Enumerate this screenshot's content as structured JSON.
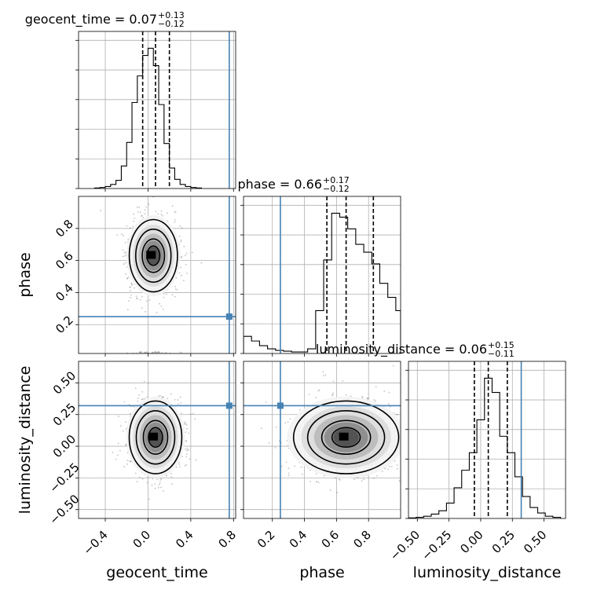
{
  "chart_data": {
    "type": "corner",
    "truth_color": "#4682b4",
    "params": [
      {
        "name": "geocent_time",
        "axis_label": "geocent_time",
        "title_value": "0.07",
        "title_plus": "+0.13",
        "title_minus": "−0.12",
        "range": [
          -0.65,
          0.82
        ],
        "ticks": [
          -0.4,
          0.0,
          0.4,
          0.8
        ],
        "tick_labels": [
          "−0.4",
          "0.0",
          "0.4",
          "0.8"
        ],
        "truth": 0.76,
        "quantiles": [
          -0.05,
          0.07,
          0.2
        ],
        "hist_edges": [
          -0.5,
          -0.45,
          -0.4,
          -0.35,
          -0.3,
          -0.25,
          -0.2,
          -0.15,
          -0.1,
          -0.05,
          0.0,
          0.05,
          0.1,
          0.15,
          0.2,
          0.25,
          0.3,
          0.35,
          0.4,
          0.45,
          0.5
        ],
        "hist_values": [
          0.5,
          1,
          2,
          4,
          8,
          22,
          45,
          84,
          110,
          130,
          137,
          120,
          82,
          44,
          20,
          9,
          4,
          2,
          1,
          0.5
        ]
      },
      {
        "name": "phase",
        "axis_label": "phase",
        "title_value": "0.66",
        "title_plus": "+0.17",
        "title_minus": "−0.12",
        "range": [
          0.02,
          1.0
        ],
        "ticks": [
          0.2,
          0.4,
          0.6,
          0.8
        ],
        "tick_labels": [
          "0.2",
          "0.4",
          "0.6",
          "0.8"
        ],
        "truth": 0.25,
        "quantiles": [
          0.54,
          0.66,
          0.83
        ],
        "hist_edges": [
          0.02,
          0.07,
          0.12,
          0.17,
          0.22,
          0.27,
          0.32,
          0.37,
          0.42,
          0.47,
          0.52,
          0.57,
          0.62,
          0.67,
          0.72,
          0.77,
          0.82,
          0.87,
          0.92,
          0.97,
          1.0
        ],
        "hist_values": [
          22,
          16,
          10,
          6,
          4,
          3,
          2,
          2,
          6,
          55,
          120,
          180,
          175,
          160,
          140,
          130,
          115,
          90,
          72,
          55
        ]
      },
      {
        "name": "luminosity_distance",
        "axis_label": "luminosity_distance",
        "title_value": "0.06",
        "title_plus": "+0.15",
        "title_minus": "−0.11",
        "range": [
          -0.57,
          0.67
        ],
        "ticks": [
          -0.5,
          -0.25,
          0.0,
          0.25,
          0.5
        ],
        "tick_labels": [
          "−0.50",
          "−0.25",
          "0.00",
          "0.25",
          "0.50"
        ],
        "truth": 0.32,
        "quantiles": [
          -0.05,
          0.06,
          0.21
        ],
        "hist_edges": [
          -0.57,
          -0.51,
          -0.45,
          -0.39,
          -0.33,
          -0.27,
          -0.21,
          -0.15,
          -0.09,
          -0.03,
          0.03,
          0.09,
          0.15,
          0.21,
          0.27,
          0.33,
          0.39,
          0.45,
          0.51,
          0.57,
          0.63
        ],
        "hist_values": [
          0.5,
          1,
          2,
          4,
          7,
          14,
          28,
          44,
          60,
          90,
          128,
          115,
          75,
          60,
          38,
          20,
          10,
          5,
          2,
          1
        ]
      }
    ],
    "pairs": [
      {
        "x_param": 0,
        "y_param": 1,
        "center": [
          0.05,
          0.63
        ],
        "spread": [
          0.11,
          0.11
        ],
        "secondary_center": [
          0.05,
          0.05
        ],
        "truth_point": [
          0.76,
          0.25
        ]
      },
      {
        "x_param": 0,
        "y_param": 2,
        "center": [
          0.07,
          0.07
        ],
        "spread": [
          0.12,
          0.14
        ],
        "truth_point": [
          0.76,
          0.32
        ]
      },
      {
        "x_param": 1,
        "y_param": 2,
        "center": [
          0.66,
          0.07
        ],
        "spread": [
          0.16,
          0.14
        ],
        "truth_point": [
          0.25,
          0.32
        ]
      }
    ]
  }
}
